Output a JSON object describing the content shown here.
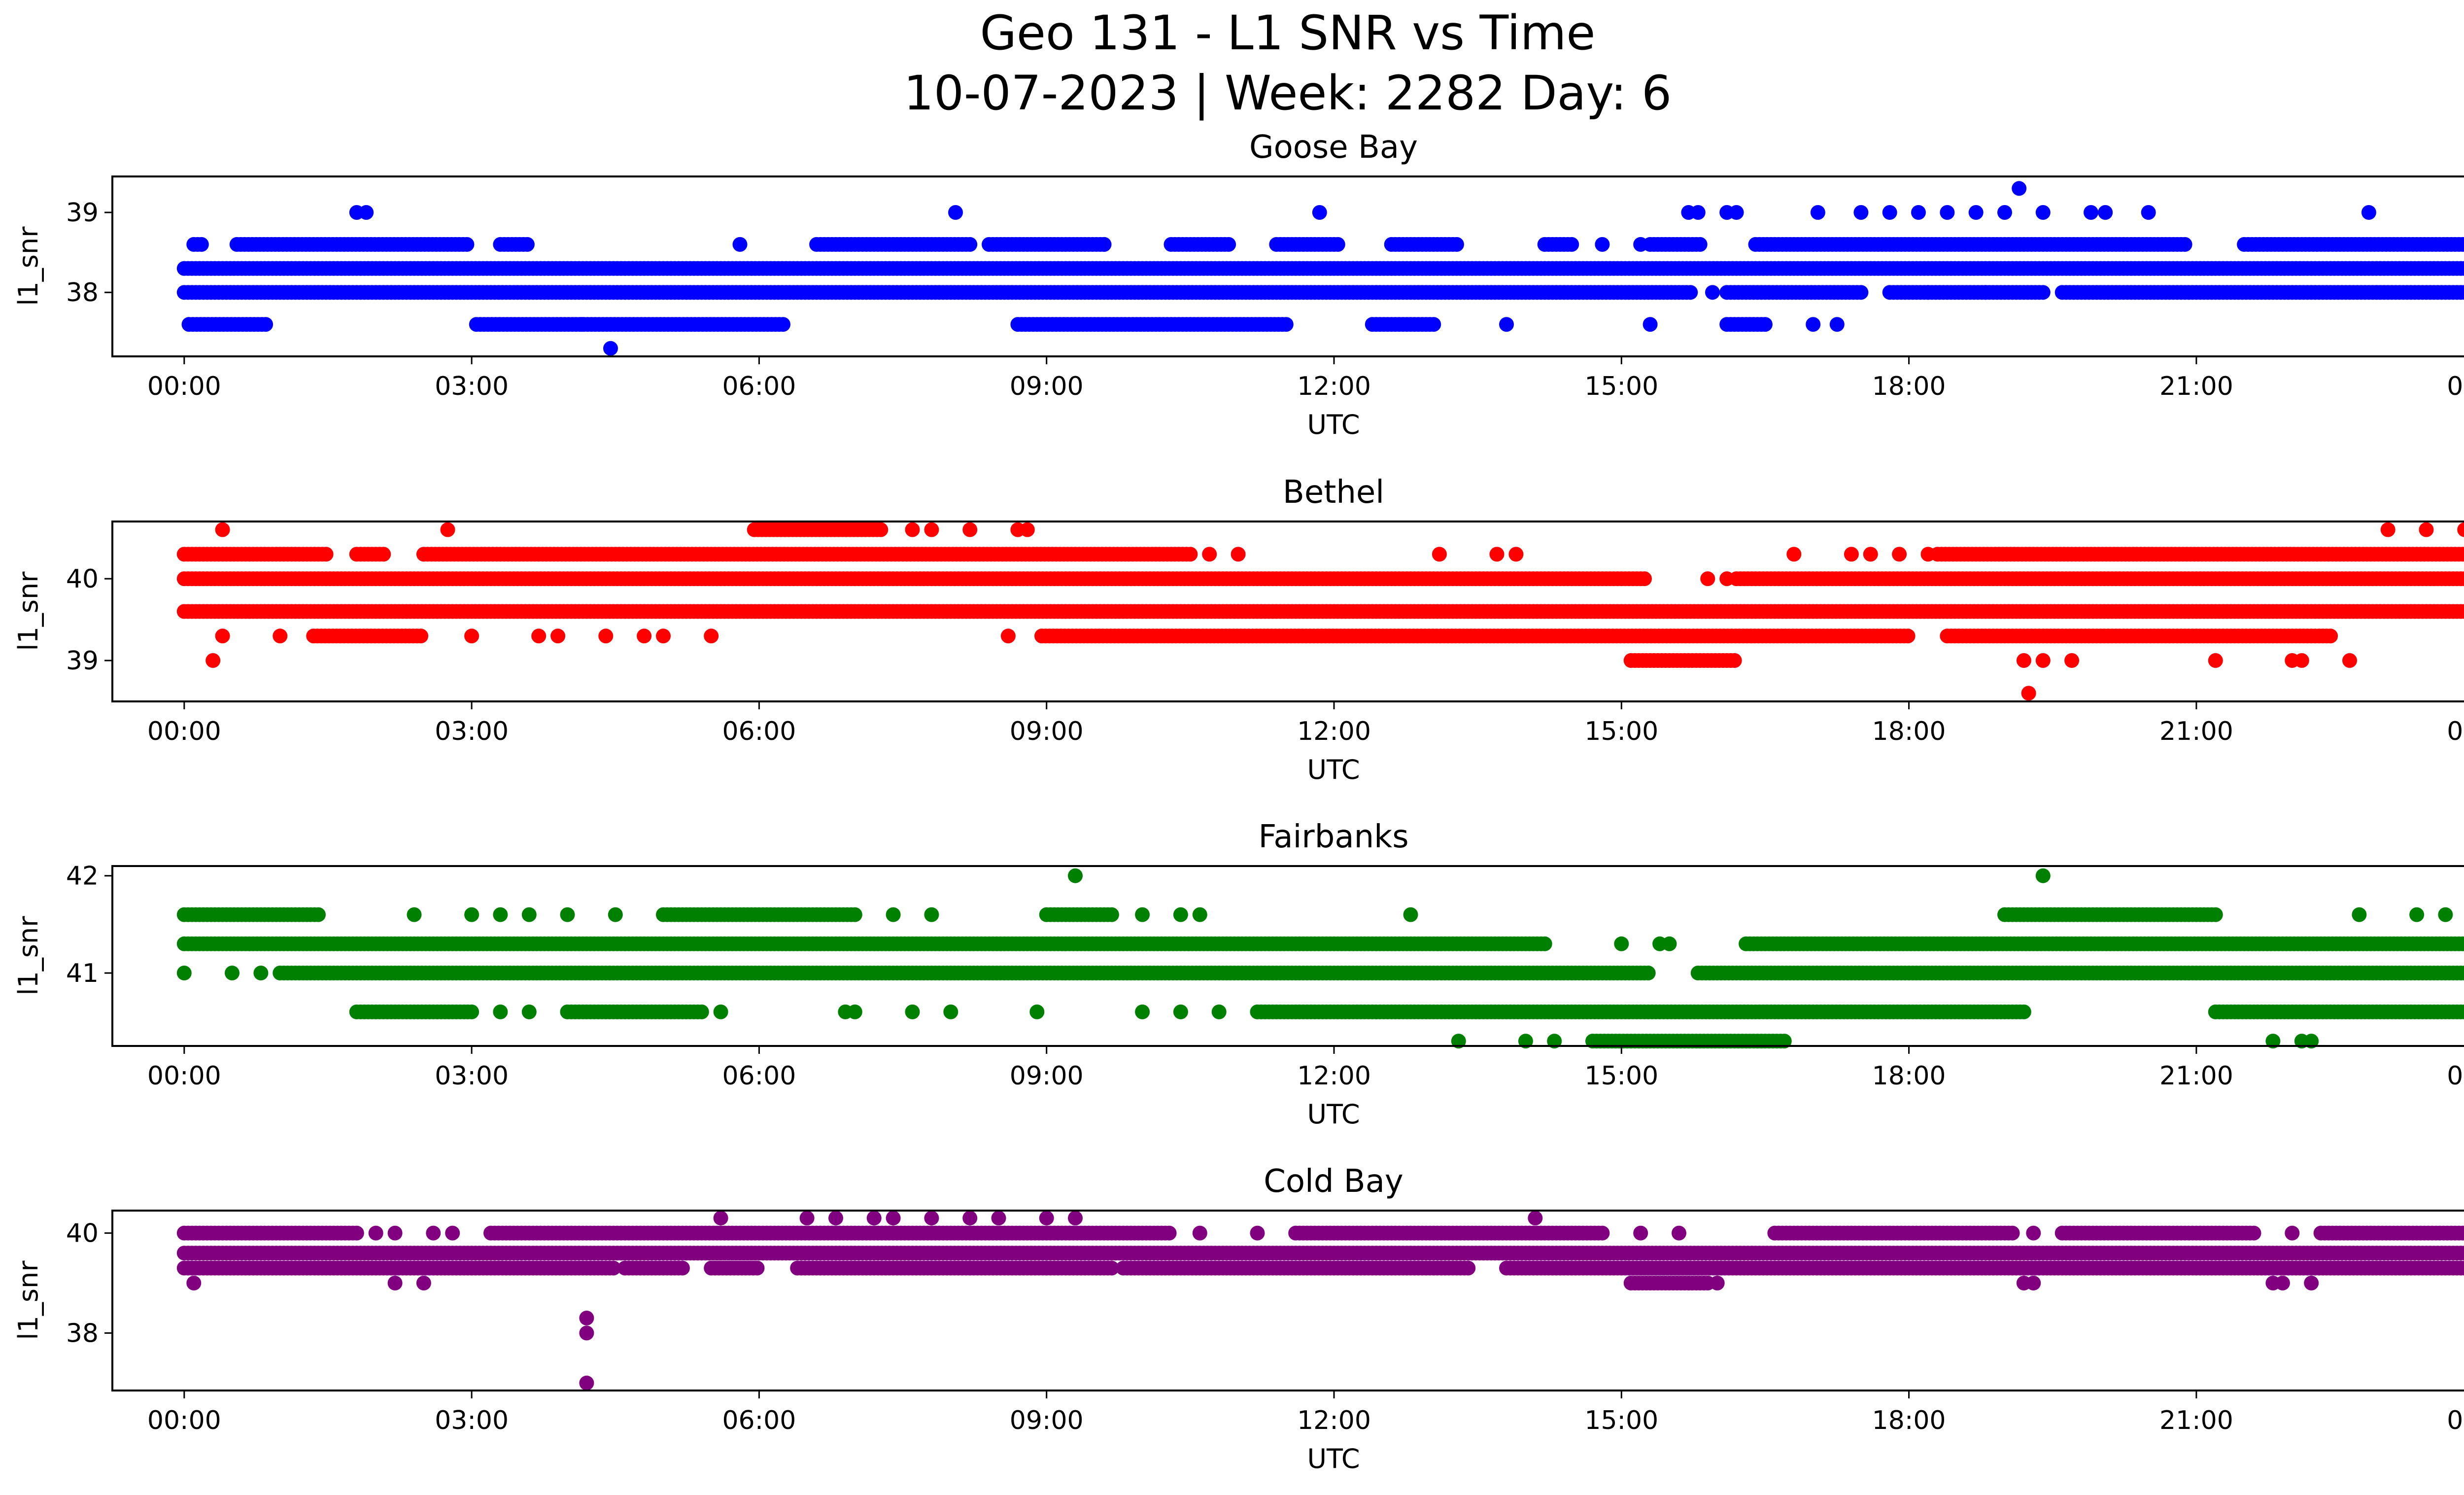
{
  "figure": {
    "title_line1": "Geo 131 - L1 SNR vs Time",
    "title_line2": "10-07-2023 | Week: 2282 Day: 6"
  },
  "chart_data": [
    {
      "type": "scatter",
      "title": "Goose Bay",
      "xlabel": "UTC",
      "ylabel": "l1_snr",
      "color": "#0000ff",
      "xlim_hours": [
        -0.75,
        24.75
      ],
      "ylim": [
        37.2,
        39.45
      ],
      "x_ticks": [
        "00:00",
        "03:00",
        "06:00",
        "09:00",
        "12:00",
        "15:00",
        "18:00",
        "21:00",
        "00:00"
      ],
      "y_ticks": [
        38,
        39
      ],
      "levels": [
        {
          "y": 38.3,
          "segments": [
            [
              0.0,
              24.0
            ]
          ]
        },
        {
          "y": 38.0,
          "segments": [
            [
              0.0,
              15.75
            ],
            [
              16.1,
              17.5
            ],
            [
              17.8,
              19.4
            ],
            [
              19.6,
              24.0
            ]
          ]
        },
        {
          "y": 38.6,
          "segments": [
            [
              0.1,
              0.2
            ],
            [
              0.55,
              2.95
            ],
            [
              3.3,
              3.6
            ],
            [
              6.6,
              8.2
            ],
            [
              8.4,
              9.6
            ],
            [
              10.3,
              10.9
            ],
            [
              11.4,
              12.05
            ],
            [
              12.6,
              13.3
            ],
            [
              14.2,
              14.5
            ],
            [
              15.3,
              15.85
            ],
            [
              16.4,
              20.9
            ],
            [
              21.5,
              24.0
            ]
          ]
        },
        {
          "y": 37.6,
          "segments": [
            [
              0.05,
              0.85
            ],
            [
              3.05,
              6.25
            ],
            [
              8.7,
              11.5
            ],
            [
              12.4,
              13.05
            ],
            [
              16.1,
              16.5
            ]
          ]
        }
      ],
      "outliers": [
        [
          1.8,
          39.0
        ],
        [
          1.9,
          39.0
        ],
        [
          8.05,
          39.0
        ],
        [
          11.85,
          39.0
        ],
        [
          15.7,
          39.0
        ],
        [
          15.8,
          39.0
        ],
        [
          16.1,
          39.0
        ],
        [
          16.2,
          39.0
        ],
        [
          17.05,
          39.0
        ],
        [
          17.5,
          39.0
        ],
        [
          17.8,
          39.0
        ],
        [
          18.1,
          39.0
        ],
        [
          18.4,
          39.0
        ],
        [
          18.7,
          39.0
        ],
        [
          19.0,
          39.0
        ],
        [
          19.4,
          39.0
        ],
        [
          19.9,
          39.0
        ],
        [
          20.05,
          39.0
        ],
        [
          20.5,
          39.0
        ],
        [
          22.8,
          39.0
        ],
        [
          19.15,
          39.3
        ],
        [
          4.45,
          37.3
        ],
        [
          4.15,
          37.6
        ],
        [
          13.8,
          37.6
        ],
        [
          15.3,
          37.6
        ],
        [
          17.0,
          37.6
        ],
        [
          17.25,
          37.6
        ],
        [
          5.8,
          38.6
        ],
        [
          9.6,
          38.6
        ],
        [
          14.8,
          38.6
        ],
        [
          15.2,
          38.6
        ],
        [
          15.95,
          38.0
        ],
        [
          18.2,
          38.0
        ],
        [
          18.8,
          38.0
        ]
      ]
    },
    {
      "type": "scatter",
      "title": "Bethel",
      "xlabel": "UTC",
      "ylabel": "l1_snr",
      "color": "#ff0000",
      "xlim_hours": [
        -0.75,
        24.75
      ],
      "ylim": [
        38.5,
        40.7
      ],
      "x_ticks": [
        "00:00",
        "03:00",
        "06:00",
        "09:00",
        "12:00",
        "15:00",
        "18:00",
        "21:00",
        "00:00"
      ],
      "y_ticks": [
        39,
        40
      ],
      "levels": [
        {
          "y": 40.0,
          "segments": [
            [
              0.0,
              15.25
            ],
            [
              16.2,
              24.0
            ]
          ]
        },
        {
          "y": 39.6,
          "segments": [
            [
              0.0,
              24.0
            ]
          ]
        },
        {
          "y": 40.3,
          "segments": [
            [
              0.0,
              1.5
            ],
            [
              1.8,
              2.1
            ],
            [
              2.5,
              10.5
            ],
            [
              18.3,
              24.0
            ]
          ]
        },
        {
          "y": 39.3,
          "segments": [
            [
              1.35,
              2.5
            ],
            [
              8.95,
              18.0
            ],
            [
              18.4,
              22.4
            ]
          ]
        },
        {
          "y": 39.0,
          "segments": [
            [
              15.1,
              16.2
            ]
          ]
        },
        {
          "y": 40.6,
          "segments": [
            [
              5.95,
              7.3
            ]
          ]
        }
      ],
      "outliers": [
        [
          0.3,
          39.0
        ],
        [
          0.4,
          40.6
        ],
        [
          0.4,
          39.3
        ],
        [
          1.0,
          39.3
        ],
        [
          2.75,
          40.6
        ],
        [
          3.0,
          39.3
        ],
        [
          3.7,
          39.3
        ],
        [
          3.9,
          39.3
        ],
        [
          4.4,
          39.3
        ],
        [
          4.8,
          39.3
        ],
        [
          5.0,
          39.3
        ],
        [
          5.5,
          39.3
        ],
        [
          7.6,
          40.6
        ],
        [
          7.8,
          40.6
        ],
        [
          8.2,
          40.6
        ],
        [
          8.7,
          40.6
        ],
        [
          8.8,
          40.6
        ],
        [
          8.6,
          39.3
        ],
        [
          10.7,
          40.3
        ],
        [
          11.0,
          40.3
        ],
        [
          13.1,
          40.3
        ],
        [
          13.7,
          40.3
        ],
        [
          13.9,
          40.3
        ],
        [
          16.8,
          40.3
        ],
        [
          17.4,
          40.3
        ],
        [
          17.6,
          40.3
        ],
        [
          17.9,
          40.3
        ],
        [
          18.2,
          40.3
        ],
        [
          15.9,
          40.0
        ],
        [
          16.1,
          40.0
        ],
        [
          19.2,
          39.0
        ],
        [
          19.4,
          39.0
        ],
        [
          19.7,
          39.0
        ],
        [
          19.25,
          38.6
        ],
        [
          21.2,
          39.0
        ],
        [
          22.0,
          39.0
        ],
        [
          22.1,
          39.0
        ],
        [
          22.6,
          39.0
        ],
        [
          23.0,
          40.6
        ],
        [
          23.4,
          40.6
        ],
        [
          23.8,
          40.6
        ],
        [
          24.0,
          40.6
        ]
      ]
    },
    {
      "type": "scatter",
      "title": "Fairbanks",
      "xlabel": "UTC",
      "ylabel": "l1_snr",
      "color": "#008000",
      "xlim_hours": [
        -0.75,
        24.75
      ],
      "ylim": [
        40.25,
        42.1
      ],
      "x_ticks": [
        "00:00",
        "03:00",
        "06:00",
        "09:00",
        "12:00",
        "15:00",
        "18:00",
        "21:00",
        "00:00"
      ],
      "y_ticks": [
        41,
        42
      ],
      "levels": [
        {
          "y": 41.3,
          "segments": [
            [
              0.0,
              14.2
            ],
            [
              16.3,
              24.0
            ]
          ]
        },
        {
          "y": 41.0,
          "segments": [
            [
              1.0,
              15.3
            ],
            [
              15.8,
              24.0
            ]
          ]
        },
        {
          "y": 41.6,
          "segments": [
            [
              0.0,
              1.4
            ],
            [
              5.0,
              7.0
            ],
            [
              9.0,
              9.7
            ],
            [
              19.0,
              21.2
            ]
          ]
        },
        {
          "y": 40.6,
          "segments": [
            [
              1.8,
              3.0
            ],
            [
              4.0,
              5.4
            ],
            [
              11.2,
              19.2
            ],
            [
              21.2,
              24.0
            ]
          ]
        },
        {
          "y": 40.3,
          "segments": [
            [
              14.7,
              16.7
            ]
          ]
        }
      ],
      "outliers": [
        [
          0.0,
          41.0
        ],
        [
          0.5,
          41.0
        ],
        [
          0.8,
          41.0
        ],
        [
          2.4,
          41.6
        ],
        [
          3.0,
          41.6
        ],
        [
          3.3,
          41.6
        ],
        [
          3.6,
          41.6
        ],
        [
          4.0,
          41.6
        ],
        [
          4.5,
          41.6
        ],
        [
          7.4,
          41.6
        ],
        [
          7.8,
          41.6
        ],
        [
          10.0,
          41.6
        ],
        [
          10.4,
          41.6
        ],
        [
          10.6,
          41.6
        ],
        [
          12.8,
          41.6
        ],
        [
          9.3,
          42.0
        ],
        [
          19.4,
          42.0
        ],
        [
          22.7,
          41.6
        ],
        [
          23.3,
          41.6
        ],
        [
          23.6,
          41.6
        ],
        [
          24.0,
          41.6
        ],
        [
          3.3,
          40.6
        ],
        [
          3.6,
          40.6
        ],
        [
          5.6,
          40.6
        ],
        [
          6.9,
          40.6
        ],
        [
          7.0,
          40.6
        ],
        [
          7.6,
          40.6
        ],
        [
          8.0,
          40.6
        ],
        [
          8.9,
          40.6
        ],
        [
          10.0,
          40.6
        ],
        [
          10.4,
          40.6
        ],
        [
          10.8,
          40.6
        ],
        [
          13.3,
          40.3
        ],
        [
          14.0,
          40.3
        ],
        [
          14.3,
          40.3
        ],
        [
          21.8,
          40.3
        ],
        [
          22.1,
          40.3
        ],
        [
          22.2,
          40.3
        ],
        [
          24.0,
          40.3
        ],
        [
          15.0,
          41.3
        ],
        [
          15.4,
          41.3
        ],
        [
          15.5,
          41.3
        ]
      ]
    },
    {
      "type": "scatter",
      "title": "Cold Bay",
      "xlabel": "UTC",
      "ylabel": "l1_snr",
      "color": "#800080",
      "xlim_hours": [
        -0.75,
        24.75
      ],
      "ylim": [
        36.85,
        40.45
      ],
      "x_ticks": [
        "00:00",
        "03:00",
        "06:00",
        "09:00",
        "12:00",
        "15:00",
        "18:00",
        "21:00",
        "00:00"
      ],
      "y_ticks": [
        38,
        40
      ],
      "levels": [
        {
          "y": 39.6,
          "segments": [
            [
              0.0,
              24.0
            ]
          ]
        },
        {
          "y": 39.3,
          "segments": [
            [
              0.0,
              4.5
            ],
            [
              4.6,
              5.2
            ],
            [
              5.5,
              6.0
            ],
            [
              6.4,
              9.7
            ],
            [
              9.8,
              13.4
            ],
            [
              13.8,
              24.0
            ]
          ]
        },
        {
          "y": 40.0,
          "segments": [
            [
              0.0,
              1.8
            ],
            [
              3.2,
              10.3
            ],
            [
              11.6,
              14.8
            ],
            [
              16.6,
              19.1
            ],
            [
              19.6,
              21.6
            ],
            [
              22.3,
              24.0
            ]
          ]
        },
        {
          "y": 39.0,
          "segments": [
            [
              15.1,
              15.9
            ]
          ]
        }
      ],
      "outliers": [
        [
          0.1,
          39.0
        ],
        [
          2.2,
          39.0
        ],
        [
          2.5,
          39.0
        ],
        [
          2.0,
          40.0
        ],
        [
          2.2,
          40.0
        ],
        [
          2.6,
          40.0
        ],
        [
          2.8,
          40.0
        ],
        [
          10.6,
          40.0
        ],
        [
          11.2,
          40.0
        ],
        [
          15.2,
          40.0
        ],
        [
          15.6,
          40.0
        ],
        [
          19.3,
          40.0
        ],
        [
          22.0,
          40.0
        ],
        [
          5.6,
          40.3
        ],
        [
          6.5,
          40.3
        ],
        [
          6.8,
          40.3
        ],
        [
          7.2,
          40.3
        ],
        [
          7.4,
          40.3
        ],
        [
          7.8,
          40.3
        ],
        [
          8.2,
          40.3
        ],
        [
          8.5,
          40.3
        ],
        [
          9.0,
          40.3
        ],
        [
          9.3,
          40.3
        ],
        [
          14.1,
          40.3
        ],
        [
          24.0,
          40.3
        ],
        [
          4.2,
          38.3
        ],
        [
          4.2,
          38.0
        ],
        [
          4.2,
          37.0
        ],
        [
          8.2,
          39.3
        ],
        [
          9.0,
          39.3
        ],
        [
          16.0,
          39.0
        ],
        [
          19.2,
          39.0
        ],
        [
          19.3,
          39.0
        ],
        [
          21.8,
          39.0
        ],
        [
          21.9,
          39.0
        ],
        [
          22.2,
          39.0
        ],
        [
          23.9,
          39.3
        ],
        [
          24.0,
          39.3
        ]
      ]
    }
  ]
}
